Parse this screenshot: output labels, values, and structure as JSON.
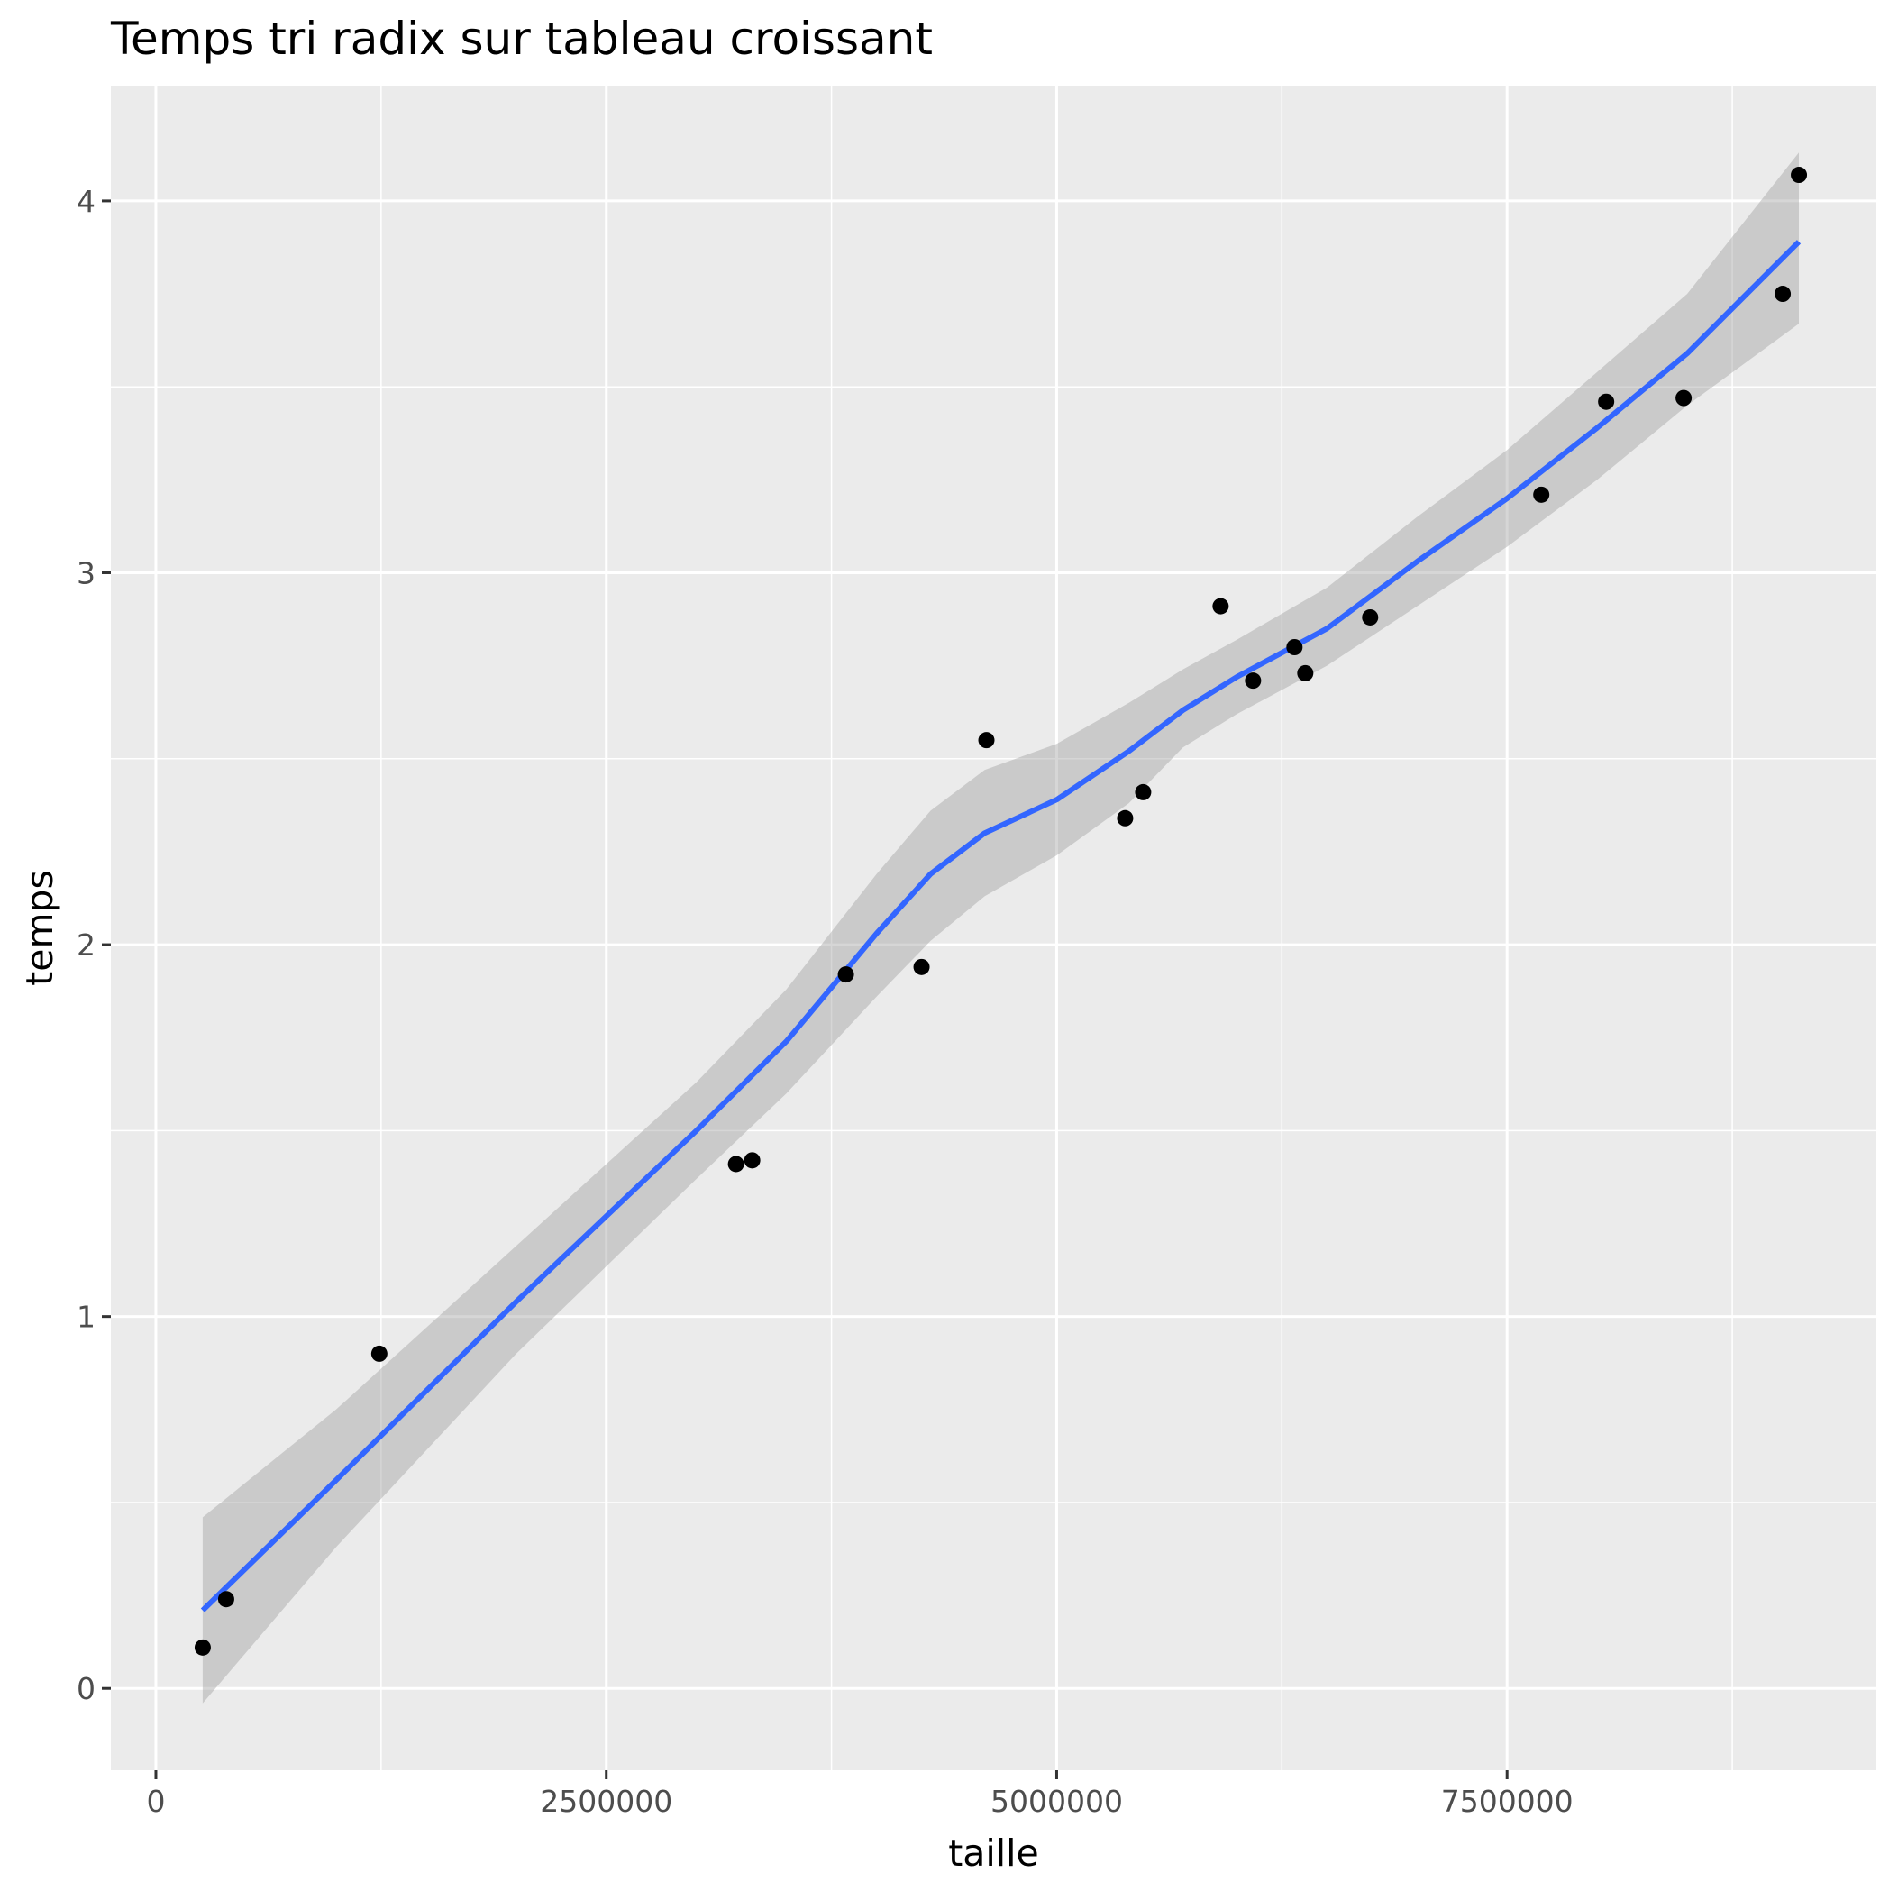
{
  "chart_data": {
    "type": "scatter",
    "title": "Temps tri radix sur tableau croissant",
    "xlabel": "taille",
    "ylabel": "temps",
    "xlim": [
      -250000,
      9550000
    ],
    "ylim": [
      -0.22,
      4.31
    ],
    "x_ticks": [
      0,
      2500000,
      5000000,
      7500000
    ],
    "x_tick_labels": [
      "0",
      "2500000",
      "5000000",
      "7500000"
    ],
    "y_ticks": [
      0,
      1,
      2,
      3,
      4
    ],
    "y_tick_labels": [
      "0",
      "1",
      "2",
      "3",
      "4"
    ],
    "x_minor": [
      1250000,
      3750000,
      6250000,
      8750000
    ],
    "y_minor": [
      0.5,
      1.5,
      2.5,
      3.5
    ],
    "grid": true,
    "colors": {
      "panel": "#ebebeb",
      "grid": "#ffffff",
      "points": "#000000",
      "smooth_line": "#3366ff",
      "confidence_band": "#999999"
    },
    "points": {
      "x": [
        260000,
        390000,
        1240000,
        3220000,
        3310000,
        3830000,
        4250000,
        4610000,
        5380000,
        5480000,
        5910000,
        6090000,
        6320000,
        6380000,
        6740000,
        7690000,
        8050000,
        8480000,
        9030000,
        9120000
      ],
      "y": [
        0.11,
        0.24,
        0.9,
        1.41,
        1.42,
        1.92,
        1.94,
        2.55,
        2.34,
        2.41,
        2.91,
        2.71,
        2.8,
        2.73,
        2.88,
        3.21,
        3.46,
        3.47,
        3.75,
        4.07
      ]
    },
    "smooth": {
      "x": [
        260000,
        1000000,
        2000000,
        3000000,
        3500000,
        4000000,
        4300000,
        4600000,
        5000000,
        5400000,
        5700000,
        6000000,
        6500000,
        7000000,
        7500000,
        8000000,
        8500000,
        9120000
      ],
      "y": [
        0.21,
        0.56,
        1.04,
        1.5,
        1.74,
        2.03,
        2.19,
        2.3,
        2.39,
        2.52,
        2.63,
        2.72,
        2.85,
        3.03,
        3.2,
        3.39,
        3.59,
        3.89
      ],
      "lower": [
        -0.04,
        0.38,
        0.9,
        1.37,
        1.6,
        1.86,
        2.01,
        2.13,
        2.24,
        2.38,
        2.53,
        2.62,
        2.75,
        2.91,
        3.07,
        3.25,
        3.45,
        3.67
      ],
      "upper": [
        0.46,
        0.75,
        1.19,
        1.63,
        1.88,
        2.19,
        2.36,
        2.47,
        2.54,
        2.65,
        2.74,
        2.82,
        2.96,
        3.15,
        3.33,
        3.54,
        3.75,
        4.13
      ]
    }
  }
}
